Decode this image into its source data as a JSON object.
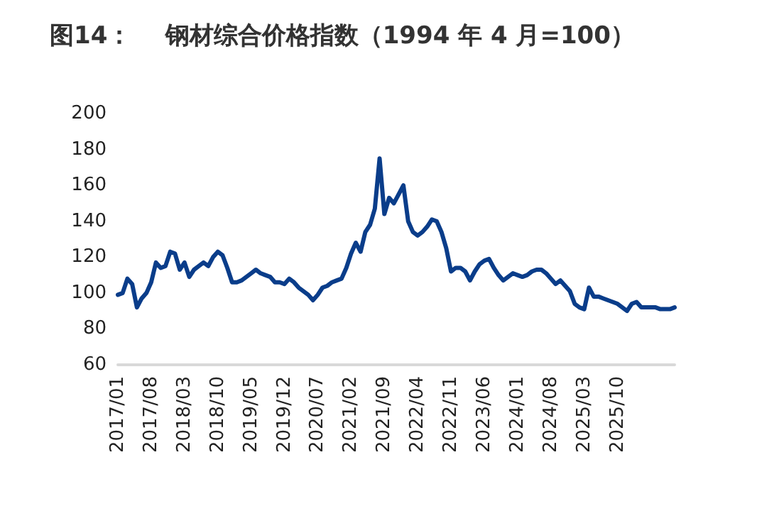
{
  "chart_data": {
    "type": "line",
    "title": "图14：    钢材综合价格指数（1994 年 4 月=100）",
    "categories": [
      "2017/01",
      null,
      null,
      null,
      null,
      null,
      null,
      "2017/08",
      null,
      null,
      null,
      null,
      null,
      null,
      "2018/03",
      null,
      null,
      null,
      null,
      null,
      null,
      "2018/10",
      null,
      null,
      null,
      null,
      null,
      null,
      "2019/05",
      null,
      null,
      null,
      null,
      null,
      null,
      "2019/12",
      null,
      null,
      null,
      null,
      null,
      null,
      "2020/07",
      null,
      null,
      null,
      null,
      null,
      null,
      "2021/02",
      null,
      null,
      null,
      null,
      null,
      null,
      "2021/09",
      null,
      null,
      null,
      null,
      null,
      null,
      "2022/04",
      null,
      null,
      null,
      null,
      null,
      null,
      "2022/11",
      null,
      null,
      null,
      null,
      null,
      null,
      "2023/06",
      null,
      null,
      null,
      null,
      null,
      null,
      "2024/01",
      null,
      null,
      null,
      null,
      null,
      null,
      "2024/08",
      null,
      null,
      null,
      null,
      null,
      null,
      "2025/03",
      null,
      null,
      null,
      null,
      null,
      null,
      "2025/10",
      null,
      null,
      null,
      null,
      null,
      null,
      null,
      null,
      null,
      null,
      null,
      null
    ],
    "series": [
      {
        "color": "#0a3d8a",
        "values": [
          99,
          100,
          108,
          105,
          92,
          97,
          100,
          106,
          117,
          114,
          115,
          123,
          122,
          113,
          117,
          109,
          113,
          115,
          117,
          115,
          120,
          123,
          121,
          114,
          106,
          106,
          107,
          109,
          111,
          113,
          111,
          110,
          109,
          106,
          106,
          105,
          108,
          106,
          103,
          101,
          99,
          96,
          99,
          103,
          104,
          106,
          107,
          108,
          114,
          122,
          128,
          123,
          134,
          138,
          147,
          175,
          144,
          153,
          150,
          155,
          160,
          140,
          134,
          132,
          134,
          137,
          141,
          140,
          134,
          125,
          112,
          114,
          114,
          112,
          107,
          112,
          116,
          118,
          119,
          114,
          110,
          107,
          109,
          111,
          110,
          109,
          110,
          112,
          113,
          113,
          111,
          108,
          105,
          107,
          104,
          101,
          94,
          92,
          91,
          103,
          98,
          98,
          97,
          96,
          95,
          94,
          92,
          90,
          94,
          95,
          92,
          92,
          92,
          92,
          91,
          91,
          91,
          92
        ]
      }
    ],
    "ylim": [
      60,
      200
    ],
    "yticks": [
      60,
      80,
      100,
      120,
      140,
      160,
      180,
      200
    ],
    "grid": false,
    "marker": "none",
    "line_style": "solid"
  }
}
